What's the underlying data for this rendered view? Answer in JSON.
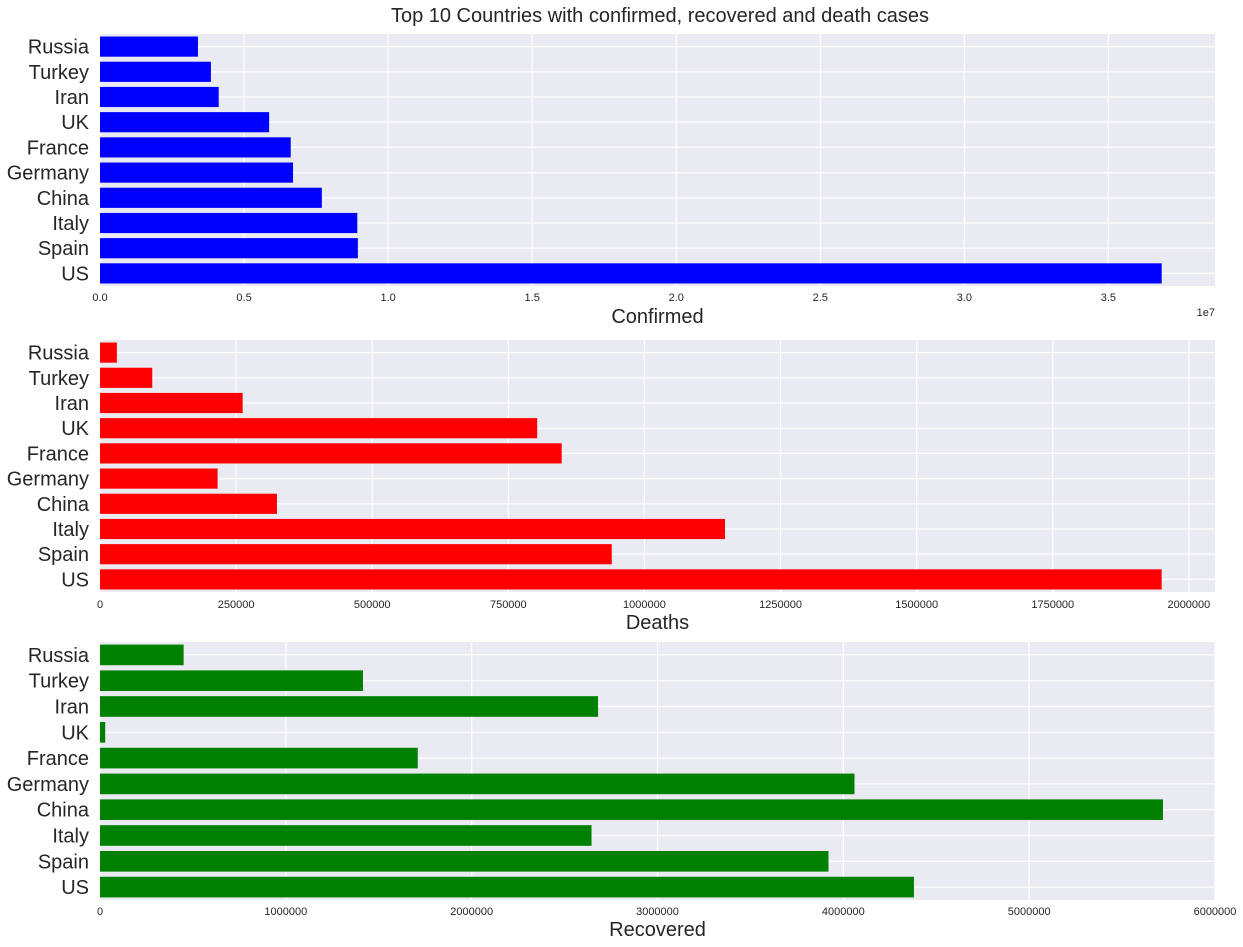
{
  "figure": {
    "title": "Top 10 Countries with confirmed, recovered and death cases",
    "background": "#ffffff",
    "axes_facecolor": "#eaeaf2",
    "grid_color": "#ffffff"
  },
  "chart_data": [
    {
      "type": "bar",
      "orientation": "horizontal",
      "title": "Top 10 Countries with confirmed, recovered and death cases",
      "categories": [
        "US",
        "Spain",
        "Italy",
        "China",
        "Germany",
        "France",
        "UK",
        "Iran",
        "Turkey",
        "Russia"
      ],
      "values": [
        36850000,
        8950000,
        8930000,
        7700000,
        6700000,
        6620000,
        5870000,
        4120000,
        3850000,
        3400000
      ],
      "color": "#0000ff",
      "xlabel": "Confirmed",
      "ylabel": "",
      "xlim": [
        0,
        38700000
      ],
      "xticks": [
        0,
        5000000,
        10000000,
        15000000,
        20000000,
        25000000,
        30000000,
        35000000
      ],
      "xtick_labels": [
        "0.0",
        "0.5",
        "1.0",
        "1.5",
        "2.0",
        "2.5",
        "3.0",
        "3.5"
      ],
      "offset_text": "1e7",
      "grid": true,
      "legend": "none"
    },
    {
      "type": "bar",
      "orientation": "horizontal",
      "categories": [
        "US",
        "Spain",
        "Italy",
        "China",
        "Germany",
        "France",
        "UK",
        "Iran",
        "Turkey",
        "Russia"
      ],
      "values": [
        1950000,
        940000,
        1148000,
        325000,
        216000,
        848000,
        803000,
        262000,
        96000,
        31000
      ],
      "color": "#ff0000",
      "xlabel": "Deaths",
      "ylabel": "",
      "xlim": [
        0,
        2048000
      ],
      "xticks": [
        0,
        250000,
        500000,
        750000,
        1000000,
        1250000,
        1500000,
        1750000,
        2000000
      ],
      "xtick_labels": [
        "0",
        "250000",
        "500000",
        "750000",
        "1000000",
        "1250000",
        "1500000",
        "1750000",
        "2000000"
      ],
      "grid": true,
      "legend": "none"
    },
    {
      "type": "bar",
      "orientation": "horizontal",
      "categories": [
        "US",
        "Spain",
        "Italy",
        "China",
        "Germany",
        "France",
        "UK",
        "Iran",
        "Turkey",
        "Russia"
      ],
      "values": [
        4380000,
        3920000,
        2645000,
        5720000,
        4060000,
        1710000,
        28000,
        2680000,
        1415000,
        450000
      ],
      "color": "#008000",
      "xlabel": "Recovered",
      "ylabel": "",
      "xlim": [
        0,
        6000000
      ],
      "xticks": [
        0,
        1000000,
        2000000,
        3000000,
        4000000,
        5000000,
        6000000
      ],
      "xtick_labels": [
        "0",
        "1000000",
        "2000000",
        "3000000",
        "4000000",
        "5000000",
        "6000000"
      ],
      "grid": true,
      "legend": "none"
    }
  ]
}
